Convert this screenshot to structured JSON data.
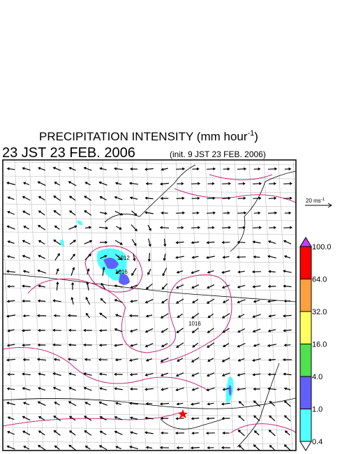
{
  "header": {
    "title": {
      "text": "PRECIPITATION INTENSITY (mm hour",
      "sup": "-1",
      "close": ")"
    },
    "valid_time": "23 JST 23 FEB. 2006",
    "init_time": "(init. 9 JST 23 FEB. 2006)"
  },
  "reference_vector": {
    "text": "20 ms",
    "sup": "-1"
  },
  "isobar_labels": [
    "1012",
    "1016",
    "1016"
  ],
  "colorbar": {
    "levels": [
      {
        "label": "100.0",
        "color": "#ff0000"
      },
      {
        "label": "64.0",
        "color": "#ffa040"
      },
      {
        "label": "32.0",
        "color": "#ffff60"
      },
      {
        "label": "16.0",
        "color": "#50e050"
      },
      {
        "label": "4.0",
        "color": "#6060ff"
      },
      {
        "label": "1.0",
        "color": "#50ffff"
      },
      {
        "label": "0.4",
        "color": null
      }
    ],
    "over_color": "#c040ff"
  }
}
